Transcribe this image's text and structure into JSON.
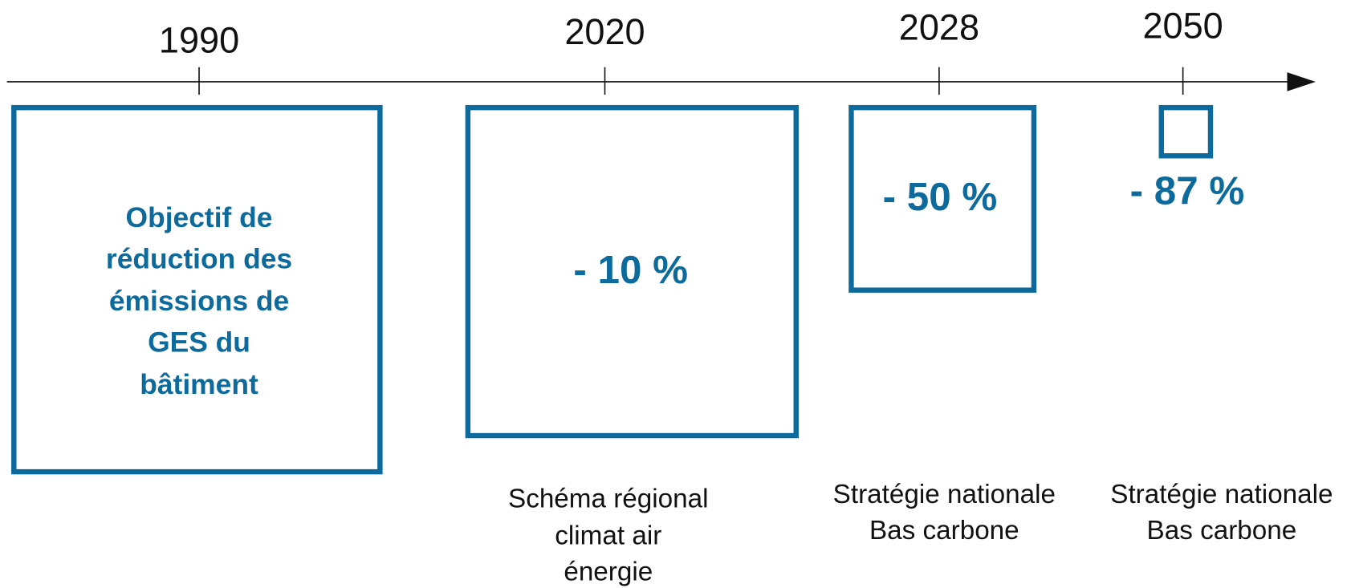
{
  "milestones": [
    {
      "year": "1990",
      "label": [
        "Objectif de",
        "réduction des",
        "émissions de",
        "GES du",
        "bâtiment"
      ]
    },
    {
      "year": "2020",
      "value": "- 10 %",
      "caption": [
        "Schéma régional",
        "climat air",
        "énergie"
      ]
    },
    {
      "year": "2028",
      "value": "- 50 %",
      "caption": [
        "Stratégie nationale",
        "Bas carbone"
      ]
    },
    {
      "year": "2050",
      "value": "- 87 %",
      "caption": [
        "Stratégie nationale",
        "Bas carbone"
      ]
    }
  ]
}
